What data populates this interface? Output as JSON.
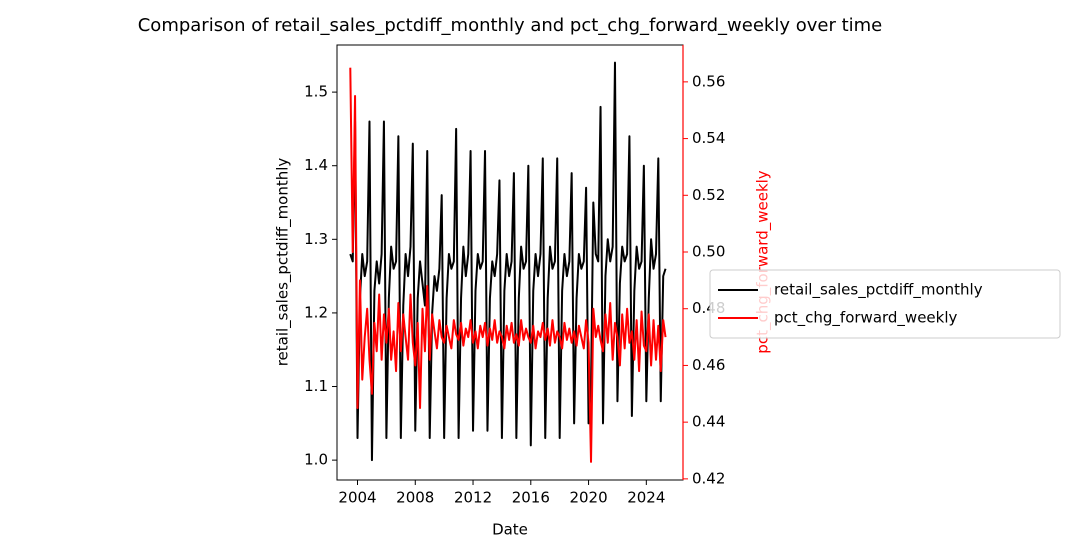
{
  "chart_data": {
    "type": "line",
    "title": "Comparison of retail_sales_pctdiff_monthly and pct_chg_forward_weekly over time",
    "xlabel": "Date",
    "ylabel": "retail_sales_pctdiff_monthly",
    "y2label": "pct_chg_forward_weekly",
    "x": [
      2003.5,
      2003.67,
      2003.83,
      2004.0,
      2004.17,
      2004.33,
      2004.5,
      2004.67,
      2004.83,
      2005.0,
      2005.17,
      2005.33,
      2005.5,
      2005.67,
      2005.83,
      2006.0,
      2006.17,
      2006.33,
      2006.5,
      2006.67,
      2006.83,
      2007.0,
      2007.17,
      2007.33,
      2007.5,
      2007.67,
      2007.83,
      2008.0,
      2008.17,
      2008.33,
      2008.5,
      2008.67,
      2008.83,
      2009.0,
      2009.17,
      2009.33,
      2009.5,
      2009.67,
      2009.83,
      2010.0,
      2010.17,
      2010.33,
      2010.5,
      2010.67,
      2010.83,
      2011.0,
      2011.17,
      2011.33,
      2011.5,
      2011.67,
      2011.83,
      2012.0,
      2012.17,
      2012.33,
      2012.5,
      2012.67,
      2012.83,
      2013.0,
      2013.17,
      2013.33,
      2013.5,
      2013.67,
      2013.83,
      2014.0,
      2014.17,
      2014.33,
      2014.5,
      2014.67,
      2014.83,
      2015.0,
      2015.17,
      2015.33,
      2015.5,
      2015.67,
      2015.83,
      2016.0,
      2016.17,
      2016.33,
      2016.5,
      2016.67,
      2016.83,
      2017.0,
      2017.17,
      2017.33,
      2017.5,
      2017.67,
      2017.83,
      2018.0,
      2018.17,
      2018.33,
      2018.5,
      2018.67,
      2018.83,
      2019.0,
      2019.17,
      2019.33,
      2019.5,
      2019.67,
      2019.83,
      2020.0,
      2020.17,
      2020.33,
      2020.5,
      2020.67,
      2020.83,
      2021.0,
      2021.17,
      2021.33,
      2021.5,
      2021.67,
      2021.83,
      2022.0,
      2022.17,
      2022.33,
      2022.5,
      2022.67,
      2022.83,
      2023.0,
      2023.17,
      2023.33,
      2023.5,
      2023.67,
      2023.83,
      2024.0,
      2024.17,
      2024.33,
      2024.5,
      2024.67,
      2024.83,
      2025.0,
      2025.17,
      2025.33
    ],
    "series": [
      {
        "name": "retail_sales_pctdiff_monthly",
        "color": "#000000",
        "values": [
          1.28,
          1.27,
          1.46,
          1.03,
          1.22,
          1.28,
          1.25,
          1.27,
          1.46,
          1.0,
          1.23,
          1.27,
          1.24,
          1.28,
          1.46,
          1.03,
          1.22,
          1.29,
          1.26,
          1.27,
          1.44,
          1.03,
          1.21,
          1.28,
          1.25,
          1.29,
          1.43,
          1.04,
          1.22,
          1.27,
          1.24,
          1.21,
          1.42,
          1.03,
          1.2,
          1.25,
          1.23,
          1.26,
          1.36,
          1.03,
          1.22,
          1.28,
          1.26,
          1.27,
          1.45,
          1.03,
          1.22,
          1.29,
          1.25,
          1.28,
          1.42,
          1.04,
          1.23,
          1.28,
          1.26,
          1.27,
          1.42,
          1.04,
          1.22,
          1.27,
          1.25,
          1.28,
          1.38,
          1.03,
          1.23,
          1.28,
          1.25,
          1.27,
          1.39,
          1.03,
          1.22,
          1.29,
          1.26,
          1.27,
          1.4,
          1.02,
          1.23,
          1.28,
          1.25,
          1.28,
          1.41,
          1.03,
          1.22,
          1.29,
          1.26,
          1.27,
          1.41,
          1.03,
          1.23,
          1.28,
          1.25,
          1.27,
          1.39,
          1.05,
          1.22,
          1.28,
          1.26,
          1.27,
          1.37,
          1.05,
          1.1,
          1.35,
          1.28,
          1.27,
          1.48,
          1.05,
          1.25,
          1.3,
          1.27,
          1.29,
          1.54,
          1.08,
          1.24,
          1.29,
          1.27,
          1.28,
          1.44,
          1.06,
          1.23,
          1.29,
          1.26,
          1.27,
          1.4,
          1.08,
          1.22,
          1.3,
          1.26,
          1.28,
          1.41,
          1.08,
          1.25,
          1.26
        ]
      },
      {
        "name": "pct_chg_forward_weekly",
        "color": "#ff0000",
        "axis": "y2",
        "values": [
          0.565,
          0.5,
          0.555,
          0.445,
          0.49,
          0.455,
          0.47,
          0.48,
          0.462,
          0.45,
          0.475,
          0.465,
          0.485,
          0.462,
          0.478,
          0.468,
          0.48,
          0.462,
          0.472,
          0.458,
          0.482,
          0.465,
          0.478,
          0.47,
          0.462,
          0.485,
          0.468,
          0.46,
          0.475,
          0.445,
          0.48,
          0.465,
          0.488,
          0.462,
          0.478,
          0.472,
          0.466,
          0.476,
          0.47,
          0.468,
          0.474,
          0.47,
          0.466,
          0.476,
          0.471,
          0.469,
          0.475,
          0.467,
          0.473,
          0.47,
          0.476,
          0.468,
          0.472,
          0.466,
          0.474,
          0.47,
          0.475,
          0.467,
          0.473,
          0.469,
          0.476,
          0.468,
          0.472,
          0.47,
          0.466,
          0.474,
          0.469,
          0.475,
          0.468,
          0.471,
          0.467,
          0.476,
          0.469,
          0.473,
          0.47,
          0.468,
          0.474,
          0.466,
          0.472,
          0.47,
          0.475,
          0.469,
          0.473,
          0.467,
          0.476,
          0.468,
          0.472,
          0.47,
          0.466,
          0.475,
          0.469,
          0.473,
          0.468,
          0.472,
          0.467,
          0.474,
          0.47,
          0.466,
          0.476,
          0.468,
          0.426,
          0.48,
          0.47,
          0.474,
          0.469,
          0.465,
          0.478,
          0.468,
          0.482,
          0.462,
          0.475,
          0.47,
          0.46,
          0.478,
          0.466,
          0.48,
          0.468,
          0.472,
          0.462,
          0.476,
          0.458,
          0.479,
          0.467,
          0.465,
          0.478,
          0.46,
          0.476,
          0.462,
          0.474,
          0.458,
          0.476,
          0.47
        ]
      }
    ],
    "xlim": [
      2002.58,
      2026.54
    ],
    "xticks": [
      2004,
      2008,
      2012,
      2016,
      2020,
      2024
    ],
    "ylim": [
      0.973,
      1.564
    ],
    "yticks": [
      {
        "value": 1,
        "label": "1.0"
      },
      1.1,
      1.2,
      1.3,
      1.4,
      1.5
    ],
    "y2lim": [
      0.4196,
      0.573
    ],
    "y2ticks": [
      0.42,
      0.44,
      0.46,
      0.48,
      {
        "value": 0.5,
        "label": "0.50"
      },
      0.52,
      0.54,
      0.56
    ],
    "legend": "outside right"
  }
}
